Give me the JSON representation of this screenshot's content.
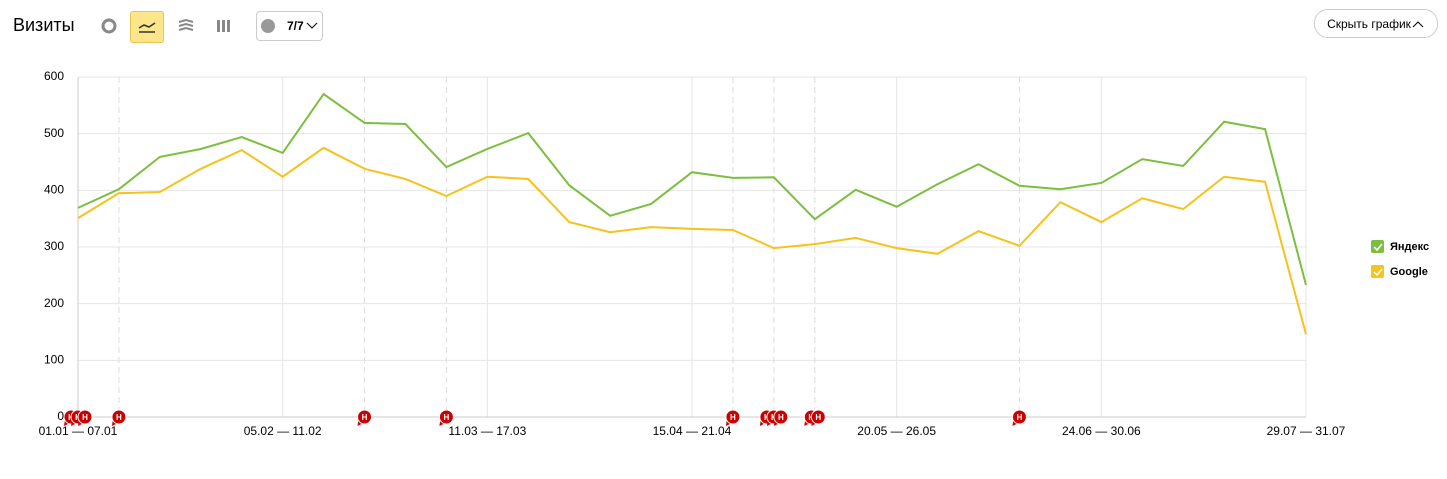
{
  "toolbar": {
    "title": "Визиты",
    "filter": "7/7",
    "hide_button": "Скрыть график"
  },
  "chart_data": {
    "type": "line",
    "categories": [
      "01.01 — 07.01",
      null,
      null,
      null,
      null,
      "05.02 — 11.02",
      null,
      null,
      null,
      null,
      "11.03 — 17.03",
      null,
      null,
      null,
      null,
      "15.04 — 21.04",
      null,
      null,
      null,
      null,
      "20.05 — 26.05",
      null,
      null,
      null,
      null,
      "24.06 — 30.06",
      null,
      null,
      null,
      null,
      "29.07 — 31.07"
    ],
    "series": [
      {
        "name": "Яндекс",
        "color": "#7cbf3f",
        "values": [
          369,
          402,
          459,
          473,
          494,
          466,
          570,
          519,
          517,
          441,
          473,
          501,
          409,
          355,
          376,
          432,
          422,
          423,
          349,
          401,
          371,
          411,
          446,
          408,
          402,
          413,
          455,
          443,
          521,
          508,
          233
        ]
      },
      {
        "name": "Google",
        "color": "#f6c21c",
        "values": [
          351,
          395,
          397,
          438,
          471,
          424,
          475,
          438,
          420,
          390,
          424,
          420,
          344,
          326,
          335,
          332,
          330,
          298,
          305,
          316,
          298,
          288,
          328,
          302,
          379,
          344,
          386,
          367,
          424,
          415,
          146
        ]
      }
    ],
    "ylim": [
      0,
      600
    ],
    "yticks": [
      0,
      100,
      200,
      300,
      400,
      500,
      600
    ],
    "grid": true,
    "legend": "right",
    "events": {
      "label": "Н",
      "color": "#cc0000",
      "positions": [
        0,
        0,
        0,
        1,
        7,
        9,
        16,
        17,
        17,
        17,
        18,
        18,
        23
      ]
    }
  }
}
